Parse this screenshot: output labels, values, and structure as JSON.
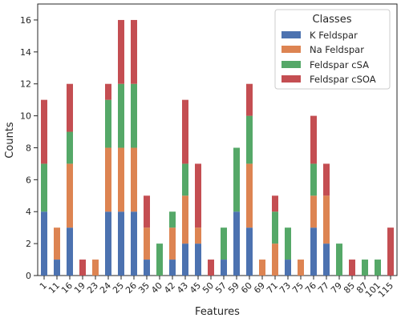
{
  "chart_data": {
    "type": "bar",
    "stacked": true,
    "xlabel": "Features",
    "ylabel": "Counts",
    "ylim": [
      0,
      17
    ],
    "yticks": [
      0,
      2,
      4,
      6,
      8,
      10,
      12,
      14,
      16
    ],
    "grid": false,
    "legend": {
      "title": "Classes",
      "placement": "top-right"
    },
    "categories": [
      "1",
      "11",
      "16",
      "19",
      "23",
      "24",
      "25",
      "26",
      "35",
      "40",
      "42",
      "43",
      "45",
      "50",
      "57",
      "59",
      "60",
      "69",
      "71",
      "73",
      "75",
      "76",
      "77",
      "79",
      "85",
      "87",
      "101",
      "115"
    ],
    "series": [
      {
        "name": "K Feldspar",
        "color": "#4c72b0",
        "values": [
          4,
          1,
          3,
          0,
          0,
          4,
          4,
          4,
          1,
          0,
          1,
          2,
          2,
          0,
          1,
          4,
          3,
          0,
          0,
          1,
          0,
          3,
          2,
          0,
          0,
          0,
          0,
          0
        ]
      },
      {
        "name": "Na Feldspar",
        "color": "#dd8452",
        "values": [
          0,
          2,
          4,
          0,
          1,
          4,
          4,
          4,
          2,
          0,
          2,
          3,
          1,
          0,
          0,
          0,
          4,
          1,
          2,
          0,
          1,
          2,
          3,
          0,
          0,
          0,
          0,
          0
        ]
      },
      {
        "name": "Feldspar cSA",
        "color": "#55a868",
        "values": [
          3,
          0,
          2,
          0,
          0,
          3,
          4,
          4,
          0,
          2,
          1,
          2,
          0,
          0,
          2,
          4,
          3,
          0,
          2,
          2,
          0,
          2,
          0,
          2,
          0,
          1,
          1,
          0
        ]
      },
      {
        "name": "Feldspar cSOA",
        "color": "#c44e52",
        "values": [
          4,
          0,
          3,
          1,
          0,
          1,
          4,
          4,
          2,
          0,
          0,
          4,
          4,
          1,
          0,
          0,
          2,
          0,
          1,
          0,
          0,
          3,
          2,
          0,
          1,
          0,
          0,
          3
        ]
      }
    ]
  }
}
